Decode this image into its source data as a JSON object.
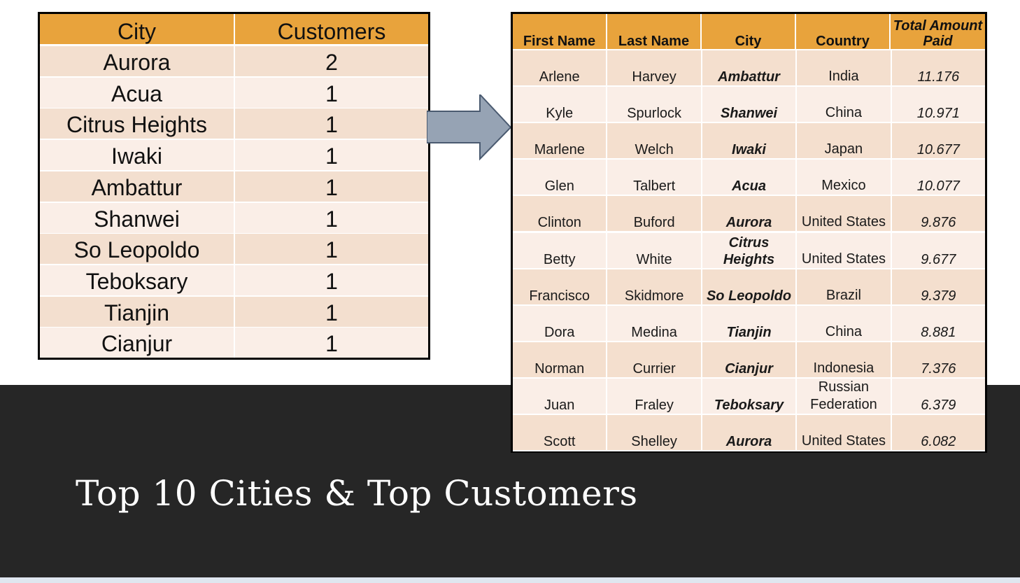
{
  "slide": {
    "title": "Top 10 Cities & Top Customers"
  },
  "colors": {
    "header_orange": "#e8a33c",
    "row_dark": "#f3dfcf",
    "row_light": "#faeee7",
    "band_dark": "#262626",
    "arrow_fill": "#96a3b4"
  },
  "cities_table": {
    "headers": [
      "City",
      "Customers"
    ],
    "rows": [
      {
        "city": "Aurora",
        "customers": "2"
      },
      {
        "city": "Acua",
        "customers": "1"
      },
      {
        "city": "Citrus Heights",
        "customers": "1"
      },
      {
        "city": "Iwaki",
        "customers": "1"
      },
      {
        "city": "Ambattur",
        "customers": "1"
      },
      {
        "city": "Shanwei",
        "customers": "1"
      },
      {
        "city": "So Leopoldo",
        "customers": "1"
      },
      {
        "city": "Teboksary",
        "customers": "1"
      },
      {
        "city": "Tianjin",
        "customers": "1"
      },
      {
        "city": "Cianjur",
        "customers": "1"
      }
    ]
  },
  "arrow": {
    "icon": "right-arrow-icon"
  },
  "customers_table": {
    "headers": [
      "First Name",
      "Last Name",
      "City",
      "Country",
      "Total Amount",
      "Paid"
    ],
    "rows": [
      {
        "first": "Arlene",
        "last": "Harvey",
        "city": "Ambattur",
        "country": "India",
        "country2": "",
        "amount": "11.176"
      },
      {
        "first": "Kyle",
        "last": "Spurlock",
        "city": "Shanwei",
        "country": "China",
        "country2": "",
        "amount": "10.971"
      },
      {
        "first": "Marlene",
        "last": "Welch",
        "city": "Iwaki",
        "country": "Japan",
        "country2": "",
        "amount": "10.677"
      },
      {
        "first": "Glen",
        "last": "Talbert",
        "city": "Acua",
        "country": "Mexico",
        "country2": "",
        "amount": "10.077"
      },
      {
        "first": "Clinton",
        "last": "Buford",
        "city": "Aurora",
        "country": "United States",
        "country2": "",
        "amount": "9.876"
      },
      {
        "first": "Betty",
        "last": "White",
        "city": "Citrus Heights",
        "country": "United States",
        "country2": "",
        "amount": "9.677"
      },
      {
        "first": "Francisco",
        "last": "Skidmore",
        "city": "So Leopoldo",
        "country": "Brazil",
        "country2": "",
        "amount": "9.379"
      },
      {
        "first": "Dora",
        "last": "Medina",
        "city": "Tianjin",
        "country": "China",
        "country2": "",
        "amount": "8.881"
      },
      {
        "first": "Norman",
        "last": "Currier",
        "city": "Cianjur",
        "country": "Indonesia",
        "country2": "",
        "amount": "7.376"
      },
      {
        "first": "Juan",
        "last": "Fraley",
        "city": "Teboksary",
        "country": "Russian",
        "country2": "Federation",
        "amount": "6.379"
      },
      {
        "first": "Scott",
        "last": "Shelley",
        "city": "Aurora",
        "country": "United States",
        "country2": "",
        "amount": "6.082"
      }
    ]
  }
}
